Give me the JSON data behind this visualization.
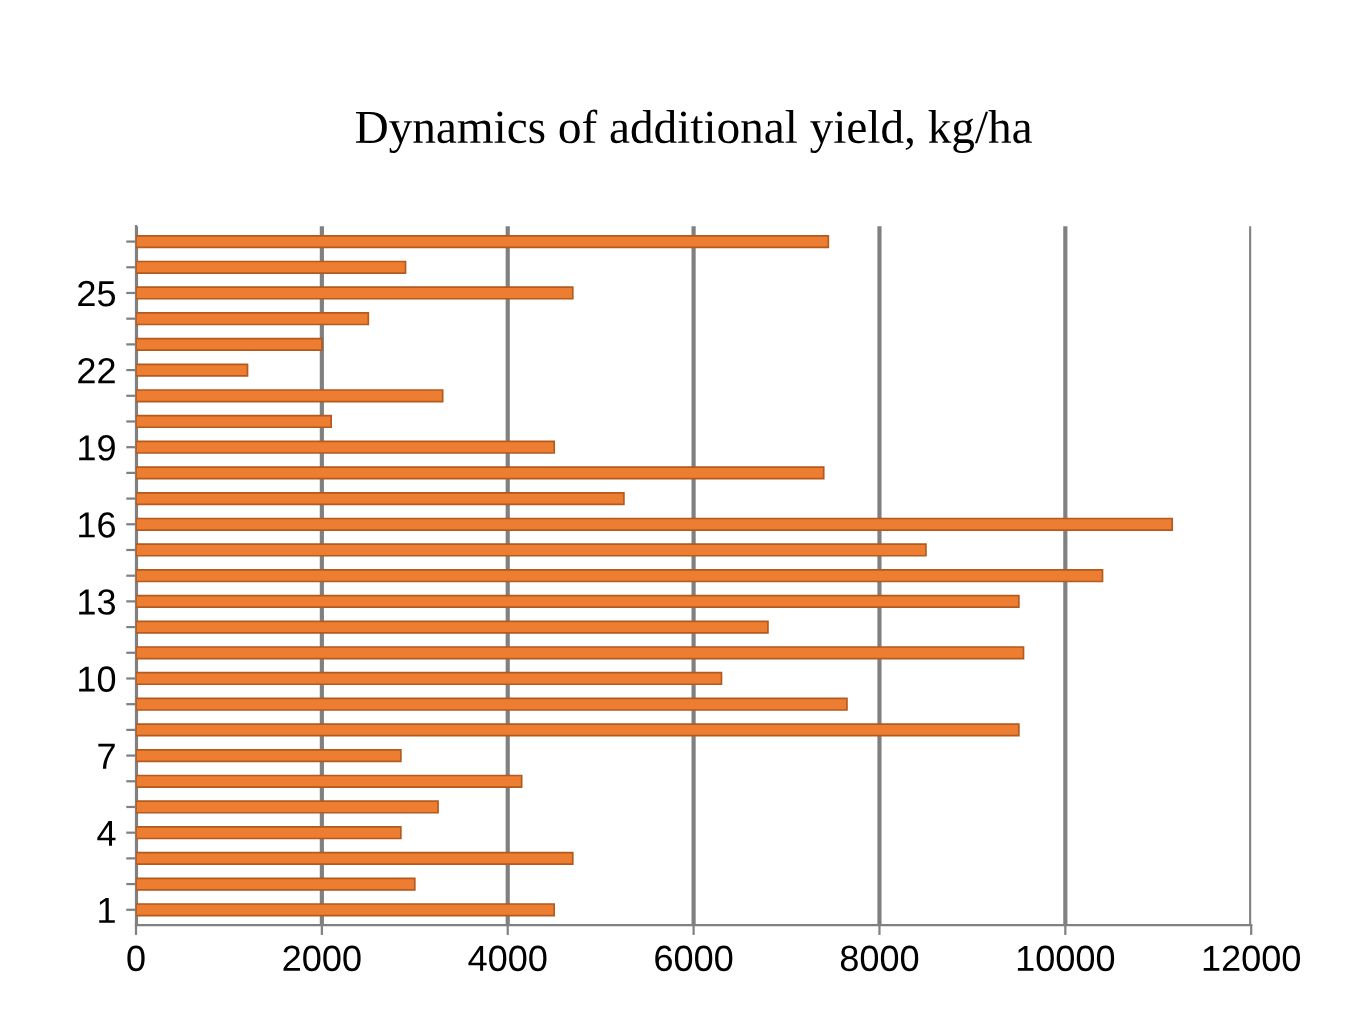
{
  "chart_data": {
    "type": "bar",
    "orientation": "horizontal",
    "title": "Dynamics of additional yield, kg/ha",
    "categories": [
      null,
      null,
      "25",
      null,
      null,
      "22",
      null,
      null,
      "19",
      null,
      null,
      "16",
      null,
      null,
      "13",
      null,
      null,
      "10",
      null,
      null,
      "7",
      null,
      null,
      "4",
      null,
      null,
      "1"
    ],
    "values": [
      7450,
      2900,
      4700,
      2500,
      2000,
      1200,
      3300,
      2100,
      4500,
      7400,
      5250,
      11150,
      8500,
      10400,
      9500,
      6800,
      9550,
      6300,
      7650,
      9500,
      2850,
      4150,
      3250,
      2850,
      4700,
      3000,
      4500
    ],
    "color": "#ed7d31",
    "xlim": [
      0,
      12000
    ],
    "xticks": [
      0,
      2000,
      4000,
      6000,
      8000,
      10000,
      12000
    ],
    "grid": "x",
    "legend": false
  }
}
